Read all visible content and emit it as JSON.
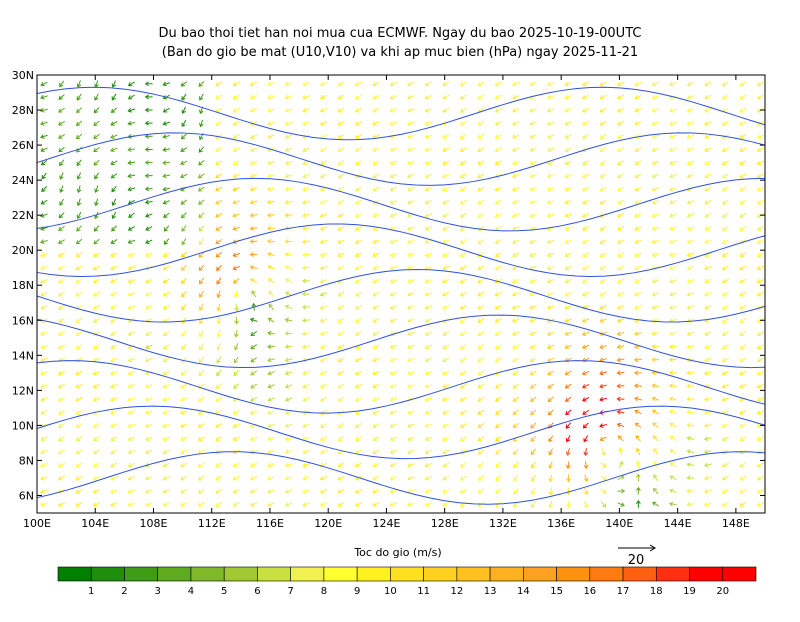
{
  "map": {
    "title": "Du bao thoi tiet han noi mua cua ECMWF. Ngay du bao 2025-10-19-00UTC",
    "subtitle": "(Ban do gio be mat (U10,V10) va khi ap muc bien (hPa) ngay 2025-11-21",
    "lonlim": [
      100,
      150
    ],
    "latlim": [
      5,
      30
    ],
    "lon_ticks": [
      {
        "value": 100,
        "label": "100E"
      },
      {
        "value": 104,
        "label": "104E"
      },
      {
        "value": 108,
        "label": "108E"
      },
      {
        "value": 112,
        "label": "112E"
      },
      {
        "value": 116,
        "label": "116E"
      },
      {
        "value": 120,
        "label": "120E"
      },
      {
        "value": 124,
        "label": "124E"
      },
      {
        "value": 128,
        "label": "128E"
      },
      {
        "value": 132,
        "label": "132E"
      },
      {
        "value": 136,
        "label": "136E"
      },
      {
        "value": 140,
        "label": "140E"
      },
      {
        "value": 144,
        "label": "144E"
      },
      {
        "value": 148,
        "label": "148E"
      }
    ],
    "lat_ticks": [
      {
        "value": 6,
        "label": "6N"
      },
      {
        "value": 8,
        "label": "8N"
      },
      {
        "value": 10,
        "label": "10N"
      },
      {
        "value": 12,
        "label": "12N"
      },
      {
        "value": 14,
        "label": "14N"
      },
      {
        "value": 16,
        "label": "16N"
      },
      {
        "value": 18,
        "label": "18N"
      },
      {
        "value": 20,
        "label": "20N"
      },
      {
        "value": 22,
        "label": "22N"
      },
      {
        "value": 24,
        "label": "24N"
      },
      {
        "value": 26,
        "label": "26N"
      },
      {
        "value": 28,
        "label": "28N"
      },
      {
        "value": 30,
        "label": "30N"
      }
    ],
    "colorbar": {
      "title": "Toc do gio (m/s)",
      "levels": [
        1,
        2,
        3,
        4,
        5,
        6,
        7,
        8,
        9,
        10,
        11,
        12,
        13,
        14,
        15,
        16,
        17,
        18,
        19,
        20
      ],
      "colors": [
        "#008000",
        "#1f8e0a",
        "#3f9c14",
        "#5fab1e",
        "#80ba28",
        "#a0c832",
        "#c8e040",
        "#f0f050",
        "#ffff30",
        "#fff020",
        "#ffe020",
        "#ffd020",
        "#ffc020",
        "#ffb020",
        "#ffa020",
        "#ff9010",
        "#ff7a10",
        "#ff6010",
        "#ff3010",
        "#ff0000",
        "#ff0000"
      ]
    },
    "reference_vector": 20
  }
}
